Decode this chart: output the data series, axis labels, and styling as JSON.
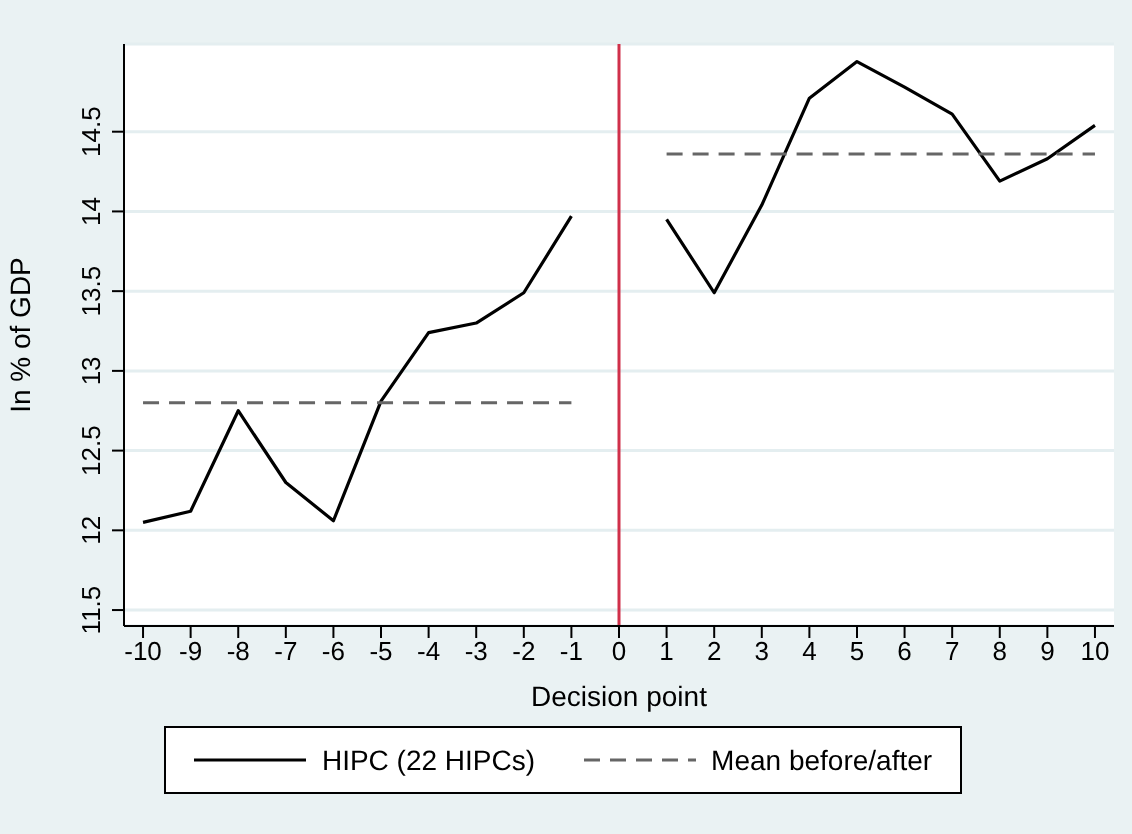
{
  "chart_data": {
    "type": "line",
    "xlabel": "Decision point",
    "ylabel": "In % of GDP",
    "xlim": [
      -10.4,
      10.4
    ],
    "xticks": [
      -10,
      -9,
      -8,
      -7,
      -6,
      -5,
      -4,
      -3,
      -2,
      -1,
      0,
      1,
      2,
      3,
      4,
      5,
      6,
      7,
      8,
      9,
      10
    ],
    "ylim": [
      11.4,
      15.05
    ],
    "yticks": [
      11.5,
      12,
      12.5,
      13,
      13.5,
      14,
      14.5
    ],
    "grid": "y",
    "legend": "bottom",
    "marker": "none",
    "series": [
      {
        "name": "HIPC (22 HIPCs)",
        "color": "#000000",
        "line_style": "solid",
        "x": [
          -10,
          -9,
          -8,
          -7,
          -6,
          -5,
          -4,
          -3,
          -2,
          -1,
          0,
          1,
          2,
          3,
          4,
          5,
          6,
          7,
          8,
          9,
          10
        ],
        "values": [
          12.05,
          12.12,
          12.75,
          12.3,
          12.06,
          12.81,
          13.24,
          13.3,
          13.49,
          13.97,
          null,
          13.95,
          13.49,
          14.04,
          14.71,
          14.94,
          14.78,
          14.61,
          14.19,
          14.33,
          14.54
        ]
      },
      {
        "name": "Mean before/after",
        "color": "#666666",
        "line_style": "dashed",
        "x": [
          -10,
          -1,
          0,
          1,
          10
        ],
        "values": [
          12.8,
          12.8,
          null,
          14.36,
          14.36
        ]
      }
    ],
    "ref_lines": [
      {
        "axis": "x",
        "value": 0,
        "color": "#d0304a"
      }
    ]
  }
}
